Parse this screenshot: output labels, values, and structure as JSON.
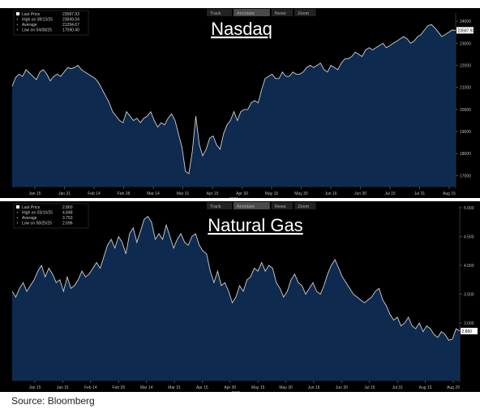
{
  "footer": {
    "source": "Source: Bloomberg"
  },
  "toolbar": {
    "items": [
      "Track",
      "Annotate",
      "News",
      "Zoom"
    ]
  },
  "chart_data": [
    {
      "type": "area",
      "title": "Nasdaq",
      "legend": {
        "last_price": {
          "label": "Last Price",
          "value": "23587.93"
        },
        "high": {
          "label": "High on 08/13/25",
          "value": "23849.04"
        },
        "average": {
          "label": "Average",
          "value": "21294.67"
        },
        "low": {
          "label": "Low on 04/08/25",
          "value": "17090.40"
        }
      },
      "last_price_tag": "23587.93",
      "x_ticks": [
        "Jan 15",
        "Jan 31",
        "Feb 14",
        "Feb 28",
        "Mar 14",
        "Mar 31",
        "Apr 15",
        "Apr 30",
        "May 15",
        "May 30",
        "Jun 16",
        "Jun 30",
        "Jul 15",
        "Jul 31",
        "Aug 15"
      ],
      "year_label": "2025",
      "y_ticks": [
        17000,
        18000,
        19000,
        20000,
        21000,
        22000,
        23000,
        24000
      ],
      "ylim": [
        16500,
        24300
      ],
      "grid": false,
      "colors": {
        "line": "#d0d0d0",
        "fill": "#0e2a4e",
        "background": "#000000",
        "axis_text": "#bbbbbb"
      },
      "series": [
        {
          "values": [
            21050,
            21450,
            21600,
            21500,
            21800,
            21650,
            21500,
            21350,
            21700,
            21800,
            21600,
            21300,
            21500,
            21600,
            21500,
            21700,
            21900,
            21850,
            21900,
            22000,
            21800,
            21700,
            21600,
            21500,
            21400,
            21200,
            20900,
            20600,
            20300,
            19900,
            19700,
            19500,
            19400,
            19900,
            19700,
            19500,
            19600,
            19400,
            19600,
            19700,
            19900,
            19500,
            19200,
            19400,
            19300,
            19600,
            19800,
            19500,
            18900,
            18300,
            17200,
            17090,
            18100,
            19700,
            18400,
            17900,
            18200,
            18700,
            18800,
            18400,
            18200,
            18900,
            19300,
            19500,
            19900,
            19500,
            19900,
            20000,
            20000,
            20300,
            20400,
            20300,
            20900,
            21400,
            21500,
            21600,
            21400,
            21400,
            21700,
            21500,
            21500,
            21700,
            21600,
            21600,
            21700,
            21900,
            22000,
            21900,
            22000,
            22100,
            21800,
            21700,
            22000,
            21900,
            21800,
            22100,
            22300,
            22300,
            22400,
            22600,
            22500,
            22400,
            22700,
            22800,
            22700,
            22800,
            22900,
            23000,
            22800,
            22900,
            23000,
            23100,
            23200,
            23300,
            23200,
            23000,
            23100,
            23300,
            23400,
            23600,
            23800,
            23849,
            23700,
            23500,
            23300,
            23400,
            23500,
            23600,
            23588
          ]
        }
      ]
    },
    {
      "type": "area",
      "title": "Natural Gas",
      "legend": {
        "last_price": {
          "label": "Last Price",
          "value": "2.860"
        },
        "high": {
          "label": "High on 03/10/25",
          "value": "4.848"
        },
        "average": {
          "label": "Average",
          "value": "3.753"
        },
        "low": {
          "label": "Low on 08/25/25",
          "value": "2.696"
        }
      },
      "last_price_tag": "2.860",
      "x_ticks": [
        "Jan 15",
        "Jan 31",
        "Feb 14",
        "Feb 28",
        "Mar 14",
        "Mar 31",
        "Apr 15",
        "Apr 30",
        "May 15",
        "May 30",
        "Jun 16",
        "Jun 30",
        "Jul 15",
        "Jul 31",
        "Aug 15",
        "Aug 29"
      ],
      "year_label": "2025",
      "y_ticks": [
        "3.000",
        "3.500",
        "4.000",
        "4.500",
        "5.000"
      ],
      "ylim": [
        2.0,
        5.0
      ],
      "grid": false,
      "colors": {
        "line": "#d0d0d0",
        "fill": "#0e2a4e",
        "background": "#000000",
        "axis_text": "#bbbbbb"
      },
      "series": [
        {
          "values": [
            3.55,
            3.45,
            3.6,
            3.7,
            3.55,
            3.65,
            3.75,
            3.9,
            4.0,
            3.8,
            3.95,
            3.85,
            3.7,
            3.75,
            3.55,
            3.8,
            3.6,
            3.65,
            3.75,
            3.9,
            3.8,
            3.85,
            3.95,
            4.05,
            3.95,
            4.15,
            4.35,
            4.45,
            4.3,
            4.5,
            4.4,
            4.2,
            4.55,
            4.65,
            4.4,
            4.6,
            4.8,
            4.85,
            4.75,
            4.45,
            4.55,
            4.45,
            4.7,
            4.5,
            4.3,
            4.45,
            4.55,
            4.4,
            4.35,
            4.5,
            4.55,
            4.35,
            4.25,
            4.2,
            3.9,
            3.7,
            3.9,
            3.65,
            3.7,
            3.55,
            3.35,
            3.45,
            3.65,
            3.55,
            3.75,
            3.8,
            3.95,
            3.9,
            4.05,
            3.9,
            4.0,
            3.95,
            3.7,
            3.6,
            3.45,
            3.55,
            3.75,
            3.85,
            3.7,
            3.65,
            3.5,
            3.6,
            3.7,
            3.55,
            3.5,
            3.65,
            3.85,
            4.0,
            4.1,
            3.95,
            3.8,
            3.7,
            3.6,
            3.5,
            3.45,
            3.4,
            3.35,
            3.4,
            3.45,
            3.55,
            3.6,
            3.4,
            3.3,
            3.15,
            3.05,
            3.1,
            2.95,
            3.0,
            3.1,
            2.95,
            2.9,
            3.0,
            2.85,
            2.95,
            2.9,
            2.8,
            2.75,
            2.85,
            2.8,
            2.7,
            2.72,
            2.9,
            2.86
          ]
        }
      ]
    }
  ]
}
